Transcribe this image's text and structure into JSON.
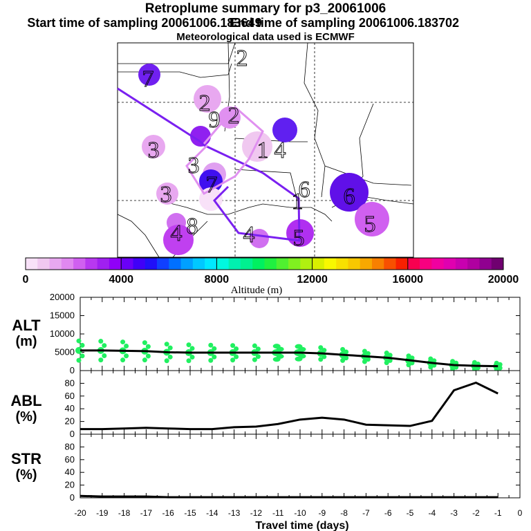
{
  "header": {
    "title": "Retroplume summary for p3_20061006",
    "start_label": "Start time of sampling 20061006.183649",
    "end_label": "End time of sampling 20061006.183702",
    "met_label": "Meteorological data used is ECMWF"
  },
  "map": {
    "cluster_labels": [
      "1",
      "1",
      "2",
      "2",
      "2",
      "3",
      "3",
      "3",
      "4",
      "4",
      "4",
      "5",
      "5",
      "6",
      "6",
      "7",
      "7",
      "8",
      "9"
    ]
  },
  "colorbar": {
    "title": "Altitude (m)",
    "min": 0,
    "max": 20000,
    "ticks": [
      "0",
      "4000",
      "8000",
      "12000",
      "16000",
      "20000"
    ],
    "colors": [
      "#f8e1f8",
      "#f0c8f0",
      "#e8a8f0",
      "#e088f0",
      "#d060f0",
      "#b838f0",
      "#a020f0",
      "#9000f8",
      "#6a00f8",
      "#4000f8",
      "#2010f8",
      "#1040ff",
      "#0070ff",
      "#00a0ff",
      "#00c8ff",
      "#00e8ff",
      "#00f8e0",
      "#00f0b0",
      "#00f090",
      "#00f060",
      "#20f040",
      "#50f030",
      "#80f020",
      "#b0f010",
      "#d8f000",
      "#f8f800",
      "#f8e000",
      "#f8c800",
      "#f8a800",
      "#f88000",
      "#f85000",
      "#f82000",
      "#f80050",
      "#f80080",
      "#f000a0",
      "#e000b0",
      "#c800b0",
      "#b000a0",
      "#900090",
      "#700070"
    ]
  },
  "chart_data": [
    {
      "type": "line",
      "panel": "ALT",
      "ylabel": "ALT (m)",
      "ylim": [
        0,
        20000
      ],
      "yticks": [
        "20000",
        "15000",
        "10000",
        "5000",
        "0"
      ],
      "x": [
        -20,
        -19,
        -18,
        -17,
        -16,
        -15,
        -14,
        -13,
        -12,
        -11,
        -10,
        -9,
        -8,
        -7,
        -6,
        -5,
        -4,
        -3,
        -2,
        -1
      ],
      "series": [
        {
          "name": "median altitude",
          "values": [
            5500,
            5500,
            5400,
            5300,
            5000,
            4900,
            4900,
            4900,
            4900,
            4900,
            4900,
            4700,
            4300,
            3900,
            3500,
            2800,
            2100,
            1500,
            1300,
            1200
          ]
        }
      ],
      "spread_color": "#20f060"
    },
    {
      "type": "line",
      "panel": "ABL",
      "ylabel": "ABL (%)",
      "ylim": [
        0,
        100
      ],
      "yticks": [
        "80",
        "60",
        "40",
        "20",
        "0"
      ],
      "x": [
        -20,
        -19,
        -18,
        -17,
        -16,
        -15,
        -14,
        -13,
        -12,
        -11,
        -10,
        -9,
        -8,
        -7,
        -6,
        -5,
        -4,
        -3,
        -2,
        -1
      ],
      "series": [
        {
          "name": "ABL fraction",
          "values": [
            8,
            8,
            9,
            10,
            9,
            8,
            8,
            11,
            12,
            16,
            23,
            26,
            23,
            15,
            14,
            13,
            21,
            69,
            81,
            64
          ]
        }
      ]
    },
    {
      "type": "line",
      "panel": "STR",
      "ylabel": "STR (%)",
      "ylim": [
        0,
        100
      ],
      "yticks": [
        "80",
        "60",
        "40",
        "20",
        "0"
      ],
      "x": [
        -20,
        -19,
        -18,
        -17,
        -16,
        -15,
        -14,
        -13,
        -12,
        -11,
        -10,
        -9,
        -8,
        -7,
        -6,
        -5,
        -4,
        -3,
        -2,
        -1
      ],
      "series": [
        {
          "name": "stratospheric fraction",
          "values": [
            3,
            2,
            2,
            2,
            1,
            1,
            1,
            1,
            1,
            1,
            1,
            1,
            1,
            1,
            1,
            1,
            1,
            1,
            1,
            1
          ]
        }
      ]
    }
  ],
  "xaxis": {
    "label": "Travel time (days)",
    "ticks": [
      "-20",
      "-19",
      "-18",
      "-17",
      "-16",
      "-15",
      "-14",
      "-13",
      "-12",
      "-11",
      "-10",
      "-9",
      "-8",
      "-7",
      "-6",
      "-5",
      "-4",
      "-3",
      "-2",
      "-1",
      "0"
    ]
  },
  "panels": {
    "alt": {
      "line1": "ALT",
      "line2": "(m)"
    },
    "abl": {
      "line1": "ABL",
      "line2": "(%)"
    },
    "str": {
      "line1": "STR",
      "line2": "(%)"
    }
  }
}
